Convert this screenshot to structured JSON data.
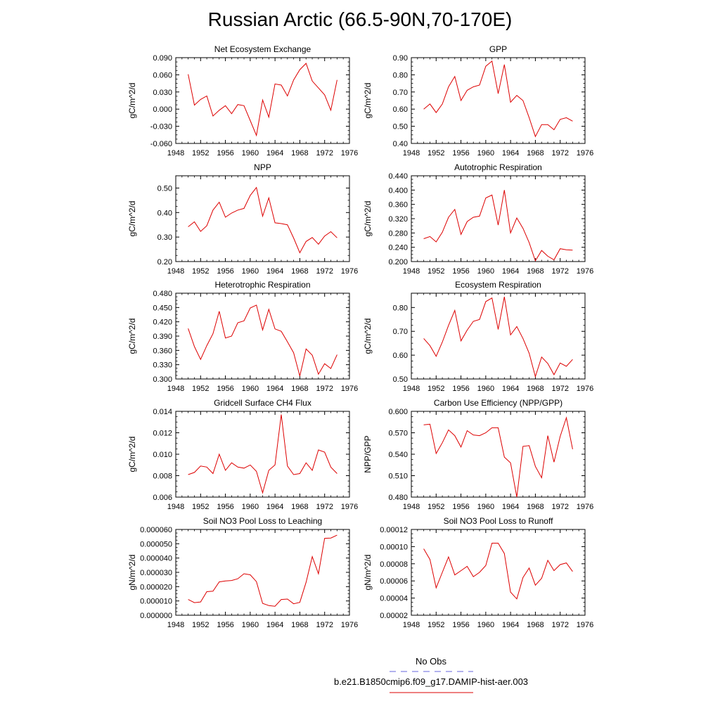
{
  "title": "Russian Arctic (66.5-90N,70-170E)",
  "legend": {
    "obs_label": "No Obs",
    "obs_color": "#6666dd",
    "model_label": "b.e21.B1850cmip6.f09_g17.DAMIP-hist-aer.003",
    "model_color": "#dd0000"
  },
  "chart_data": [
    {
      "type": "line",
      "title": "Net Ecosystem Exchange",
      "ylabel": "gC/m^2/d",
      "xlim": [
        1948,
        1976
      ],
      "ylim": [
        -0.06,
        0.09
      ],
      "xticks": [
        1948,
        1952,
        1956,
        1960,
        1964,
        1968,
        1972,
        1976
      ],
      "yticks": [
        -0.06,
        -0.03,
        0.0,
        0.03,
        0.06,
        0.09
      ],
      "ytick_labels": [
        "-0.060",
        "-0.030",
        "0.000",
        "0.030",
        "0.060",
        "0.090"
      ],
      "series": [
        {
          "x": [
            1950,
            1951,
            1952,
            1953,
            1954,
            1955,
            1956,
            1957,
            1958,
            1959,
            1960,
            1961,
            1962,
            1963,
            1964,
            1965,
            1966,
            1967,
            1968,
            1969,
            1970,
            1971,
            1972,
            1973,
            1974
          ],
          "y": [
            0.061,
            0.007,
            0.017,
            0.023,
            -0.012,
            -0.002,
            0.006,
            -0.008,
            0.008,
            0.006,
            -0.02,
            -0.046,
            0.016,
            -0.014,
            0.044,
            0.042,
            0.023,
            0.051,
            0.069,
            0.08,
            0.049,
            0.037,
            0.025,
            -0.002,
            0.051
          ]
        }
      ]
    },
    {
      "type": "line",
      "title": "GPP",
      "ylabel": "gC/m^2/d",
      "xlim": [
        1948,
        1976
      ],
      "ylim": [
        0.4,
        0.9
      ],
      "xticks": [
        1948,
        1952,
        1956,
        1960,
        1964,
        1968,
        1972,
        1976
      ],
      "yticks": [
        0.4,
        0.5,
        0.6,
        0.7,
        0.8,
        0.9
      ],
      "ytick_labels": [
        "0.40",
        "0.50",
        "0.60",
        "0.70",
        "0.80",
        "0.90"
      ],
      "series": [
        {
          "x": [
            1950,
            1951,
            1952,
            1953,
            1954,
            1955,
            1956,
            1957,
            1958,
            1959,
            1960,
            1961,
            1962,
            1963,
            1964,
            1965,
            1966,
            1967,
            1968,
            1969,
            1970,
            1971,
            1972,
            1973,
            1974
          ],
          "y": [
            0.6,
            0.63,
            0.58,
            0.63,
            0.73,
            0.79,
            0.65,
            0.71,
            0.73,
            0.74,
            0.85,
            0.88,
            0.69,
            0.86,
            0.64,
            0.68,
            0.65,
            0.55,
            0.44,
            0.51,
            0.51,
            0.48,
            0.54,
            0.55,
            0.53
          ]
        }
      ]
    },
    {
      "type": "line",
      "title": "NPP",
      "ylabel": "gC/m^2/d",
      "xlim": [
        1948,
        1976
      ],
      "ylim": [
        0.2,
        0.55
      ],
      "xticks": [
        1948,
        1952,
        1956,
        1960,
        1964,
        1968,
        1972,
        1976
      ],
      "yticks": [
        0.2,
        0.3,
        0.4,
        0.5
      ],
      "ytick_labels": [
        "0.20",
        "0.30",
        "0.40",
        "0.50"
      ],
      "series": [
        {
          "x": [
            1950,
            1951,
            1952,
            1953,
            1954,
            1955,
            1956,
            1957,
            1958,
            1959,
            1960,
            1961,
            1962,
            1963,
            1964,
            1965,
            1966,
            1967,
            1968,
            1969,
            1970,
            1971,
            1972,
            1973,
            1974
          ],
          "y": [
            0.342,
            0.362,
            0.323,
            0.346,
            0.41,
            0.442,
            0.381,
            0.398,
            0.41,
            0.417,
            0.47,
            0.502,
            0.385,
            0.46,
            0.358,
            0.355,
            0.35,
            0.296,
            0.236,
            0.282,
            0.298,
            0.271,
            0.304,
            0.322,
            0.297
          ]
        }
      ]
    },
    {
      "type": "line",
      "title": "Autotrophic Respiration",
      "ylabel": "gC/m^2/d",
      "xlim": [
        1948,
        1976
      ],
      "ylim": [
        0.2,
        0.44
      ],
      "xticks": [
        1948,
        1952,
        1956,
        1960,
        1964,
        1968,
        1972,
        1976
      ],
      "yticks": [
        0.2,
        0.24,
        0.28,
        0.32,
        0.36,
        0.4,
        0.44
      ],
      "ytick_labels": [
        "0.200",
        "0.240",
        "0.280",
        "0.320",
        "0.360",
        "0.400",
        "0.440"
      ],
      "series": [
        {
          "x": [
            1950,
            1951,
            1952,
            1953,
            1954,
            1955,
            1956,
            1957,
            1958,
            1959,
            1960,
            1961,
            1962,
            1963,
            1964,
            1965,
            1966,
            1967,
            1968,
            1969,
            1970,
            1971,
            1972,
            1973,
            1974
          ],
          "y": [
            0.264,
            0.27,
            0.255,
            0.282,
            0.324,
            0.346,
            0.276,
            0.312,
            0.324,
            0.327,
            0.378,
            0.386,
            0.302,
            0.4,
            0.28,
            0.322,
            0.293,
            0.253,
            0.202,
            0.231,
            0.215,
            0.205,
            0.236,
            0.233,
            0.232
          ]
        }
      ]
    },
    {
      "type": "line",
      "title": "Heterotrophic Respiration",
      "ylabel": "gC/m^2/d",
      "xlim": [
        1948,
        1976
      ],
      "ylim": [
        0.3,
        0.48
      ],
      "xticks": [
        1948,
        1952,
        1956,
        1960,
        1964,
        1968,
        1972,
        1976
      ],
      "yticks": [
        0.3,
        0.33,
        0.36,
        0.39,
        0.42,
        0.45,
        0.48
      ],
      "ytick_labels": [
        "0.300",
        "0.330",
        "0.360",
        "0.390",
        "0.420",
        "0.450",
        "0.480"
      ],
      "series": [
        {
          "x": [
            1950,
            1951,
            1952,
            1953,
            1954,
            1955,
            1956,
            1957,
            1958,
            1959,
            1960,
            1961,
            1962,
            1963,
            1964,
            1965,
            1966,
            1967,
            1968,
            1969,
            1970,
            1971,
            1972,
            1973,
            1974
          ],
          "y": [
            0.406,
            0.368,
            0.341,
            0.37,
            0.395,
            0.442,
            0.386,
            0.39,
            0.418,
            0.422,
            0.449,
            0.455,
            0.403,
            0.446,
            0.405,
            0.4,
            0.378,
            0.355,
            0.306,
            0.363,
            0.35,
            0.31,
            0.332,
            0.322,
            0.351
          ]
        }
      ]
    },
    {
      "type": "line",
      "title": "Ecosystem Respiration",
      "ylabel": "gC/m^2/d",
      "xlim": [
        1948,
        1976
      ],
      "ylim": [
        0.5,
        0.86
      ],
      "xticks": [
        1948,
        1952,
        1956,
        1960,
        1964,
        1968,
        1972,
        1976
      ],
      "yticks": [
        0.5,
        0.6,
        0.7,
        0.8
      ],
      "ytick_labels": [
        "0.50",
        "0.60",
        "0.70",
        "0.80"
      ],
      "series": [
        {
          "x": [
            1950,
            1951,
            1952,
            1953,
            1954,
            1955,
            1956,
            1957,
            1958,
            1959,
            1960,
            1961,
            1962,
            1963,
            1964,
            1965,
            1966,
            1967,
            1968,
            1969,
            1970,
            1971,
            1972,
            1973,
            1974
          ],
          "y": [
            0.67,
            0.64,
            0.595,
            0.655,
            0.725,
            0.788,
            0.66,
            0.705,
            0.742,
            0.75,
            0.825,
            0.84,
            0.708,
            0.845,
            0.685,
            0.72,
            0.67,
            0.608,
            0.51,
            0.592,
            0.565,
            0.518,
            0.567,
            0.553,
            0.582
          ]
        }
      ]
    },
    {
      "type": "line",
      "title": "Gridcell Surface CH4 Flux",
      "ylabel": "gC/m^2/d",
      "xlim": [
        1948,
        1976
      ],
      "ylim": [
        0.006,
        0.014
      ],
      "xticks": [
        1948,
        1952,
        1956,
        1960,
        1964,
        1968,
        1972,
        1976
      ],
      "yticks": [
        0.006,
        0.008,
        0.01,
        0.012,
        0.014
      ],
      "ytick_labels": [
        "0.006",
        "0.008",
        "0.010",
        "0.012",
        "0.014"
      ],
      "series": [
        {
          "x": [
            1950,
            1951,
            1952,
            1953,
            1954,
            1955,
            1956,
            1957,
            1958,
            1959,
            1960,
            1961,
            1962,
            1963,
            1964,
            1965,
            1966,
            1967,
            1968,
            1969,
            1970,
            1971,
            1972,
            1973,
            1974
          ],
          "y": [
            0.0081,
            0.0083,
            0.0089,
            0.0088,
            0.0082,
            0.01,
            0.0085,
            0.0092,
            0.0088,
            0.0087,
            0.009,
            0.0084,
            0.0064,
            0.0085,
            0.009,
            0.0137,
            0.0089,
            0.0081,
            0.0082,
            0.0092,
            0.0085,
            0.0104,
            0.0102,
            0.0088,
            0.0082
          ]
        }
      ]
    },
    {
      "type": "line",
      "title": "Carbon Use Efficiency (NPP/GPP)",
      "ylabel": "NPP/GPP",
      "xlim": [
        1948,
        1976
      ],
      "ylim": [
        0.48,
        0.6
      ],
      "xticks": [
        1948,
        1952,
        1956,
        1960,
        1964,
        1968,
        1972,
        1976
      ],
      "yticks": [
        0.48,
        0.51,
        0.54,
        0.57,
        0.6
      ],
      "ytick_labels": [
        "0.480",
        "0.510",
        "0.540",
        "0.570",
        "0.600"
      ],
      "series": [
        {
          "x": [
            1950,
            1951,
            1952,
            1953,
            1954,
            1955,
            1956,
            1957,
            1958,
            1959,
            1960,
            1961,
            1962,
            1963,
            1964,
            1965,
            1966,
            1967,
            1968,
            1969,
            1970,
            1971,
            1972,
            1973,
            1974
          ],
          "y": [
            0.581,
            0.582,
            0.541,
            0.556,
            0.574,
            0.566,
            0.55,
            0.573,
            0.567,
            0.566,
            0.57,
            0.577,
            0.577,
            0.536,
            0.528,
            0.48,
            0.551,
            0.552,
            0.523,
            0.507,
            0.566,
            0.529,
            0.565,
            0.591,
            0.547
          ]
        }
      ]
    },
    {
      "type": "line",
      "title": "Soil NO3 Pool Loss to Leaching",
      "ylabel": "gN/m^2/d",
      "xlim": [
        1948,
        1976
      ],
      "ylim": [
        0.0,
        6e-05
      ],
      "xticks": [
        1948,
        1952,
        1956,
        1960,
        1964,
        1968,
        1972,
        1976
      ],
      "yticks": [
        0.0,
        1e-05,
        2e-05,
        3e-05,
        4e-05,
        5e-05,
        6e-05
      ],
      "ytick_labels": [
        "0.000000",
        "0.000010",
        "0.000020",
        "0.000030",
        "0.000040",
        "0.000050",
        "0.000060"
      ],
      "series": [
        {
          "x": [
            1950,
            1951,
            1952,
            1953,
            1954,
            1955,
            1956,
            1957,
            1958,
            1959,
            1960,
            1961,
            1962,
            1963,
            1964,
            1965,
            1966,
            1967,
            1968,
            1969,
            1970,
            1971,
            1972,
            1973,
            1974
          ],
          "y": [
            1.1e-05,
            8.8e-06,
            9.3e-06,
            1.65e-05,
            1.68e-05,
            2.33e-05,
            2.4e-05,
            2.43e-05,
            2.55e-05,
            2.9e-05,
            2.83e-05,
            2.35e-05,
            8.3e-06,
            6.8e-06,
            6.3e-06,
            1.1e-05,
            1.13e-05,
            8e-06,
            9e-06,
            2.3e-05,
            4.1e-05,
            2.9e-05,
            5.38e-05,
            5.4e-05,
            5.6e-05
          ]
        }
      ]
    },
    {
      "type": "line",
      "title": "Soil NO3 Pool Loss to Runoff",
      "ylabel": "gN/m^2/d",
      "xlim": [
        1948,
        1976
      ],
      "ylim": [
        2e-05,
        0.00012
      ],
      "xticks": [
        1948,
        1952,
        1956,
        1960,
        1964,
        1968,
        1972,
        1976
      ],
      "yticks": [
        2e-05,
        4e-05,
        6e-05,
        8e-05,
        0.0001,
        0.00012
      ],
      "ytick_labels": [
        "0.00002",
        "0.00004",
        "0.00006",
        "0.00008",
        "0.00010",
        "0.00012"
      ],
      "series": [
        {
          "x": [
            1950,
            1951,
            1952,
            1953,
            1954,
            1955,
            1956,
            1957,
            1958,
            1959,
            1960,
            1961,
            1962,
            1963,
            1964,
            1965,
            1966,
            1967,
            1968,
            1969,
            1970,
            1971,
            1972,
            1973,
            1974
          ],
          "y": [
            9.75e-05,
            8.5e-05,
            5.2e-05,
            7e-05,
            8.8e-05,
            6.7e-05,
            7.2e-05,
            7.7e-05,
            6.5e-05,
            7e-05,
            7.8e-05,
            0.000104,
            0.000104,
            9.2e-05,
            4.7e-05,
            3.9e-05,
            6.4e-05,
            7.5e-05,
            5.5e-05,
            6.3e-05,
            8.4e-05,
            7.2e-05,
            7.9e-05,
            8.1e-05,
            7.1e-05
          ]
        }
      ]
    }
  ]
}
